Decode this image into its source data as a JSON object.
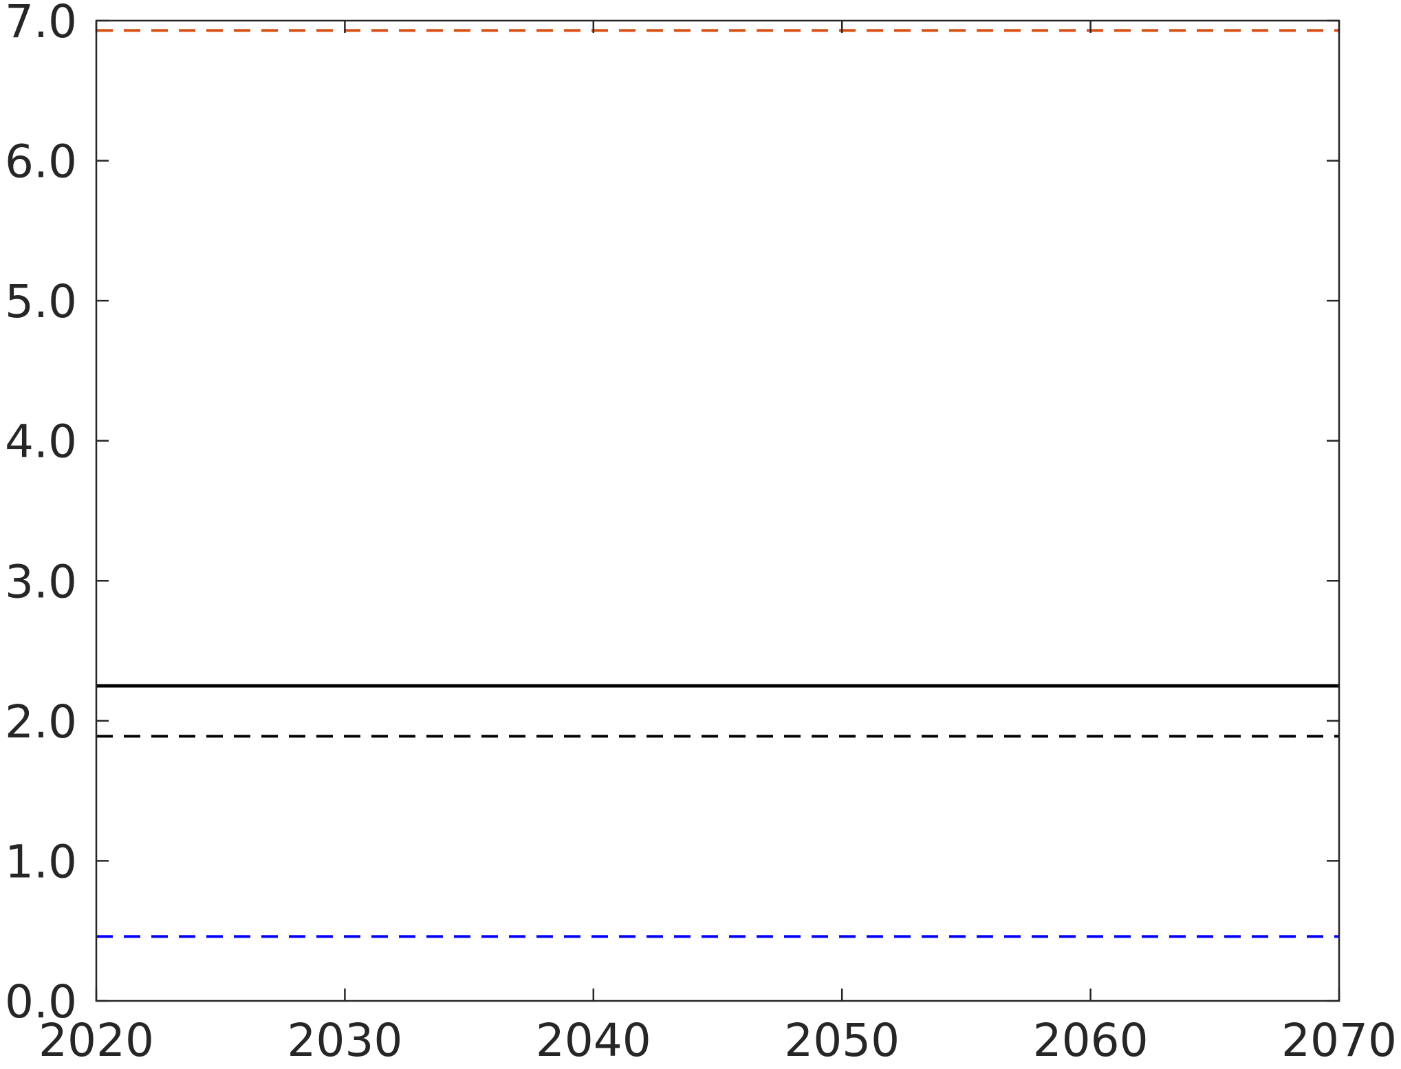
{
  "chart_data": {
    "type": "line",
    "title": "",
    "xlabel": "",
    "ylabel": "",
    "xlim": [
      2020,
      2070
    ],
    "ylim": [
      0.0,
      7.0
    ],
    "x_ticks": [
      2020,
      2030,
      2040,
      2050,
      2060,
      2070
    ],
    "x_tick_labels": [
      "2020",
      "2030",
      "2040",
      "2050",
      "2060",
      "2070"
    ],
    "y_ticks": [
      0,
      1,
      2,
      3,
      4,
      5,
      6,
      7
    ],
    "y_tick_labels": [
      "0.0",
      "1.0",
      "2.0",
      "3.0",
      "4.0",
      "5.0",
      "6.0",
      "7.0"
    ],
    "grid": false,
    "legend": "none",
    "series": [
      {
        "x": [
          2020,
          2070
        ],
        "values": [
          6.93,
          6.93
        ],
        "color": "#d95319",
        "style": "dashed"
      },
      {
        "x": [
          2020,
          2070
        ],
        "values": [
          2.25,
          2.25
        ],
        "color": "#000000",
        "style": "solid"
      },
      {
        "x": [
          2020,
          2070
        ],
        "values": [
          1.89,
          1.89
        ],
        "color": "#000000",
        "style": "dashed"
      },
      {
        "x": [
          2020,
          2070
        ],
        "values": [
          0.46,
          0.46
        ],
        "color": "#0000ff",
        "style": "dashed"
      }
    ]
  }
}
